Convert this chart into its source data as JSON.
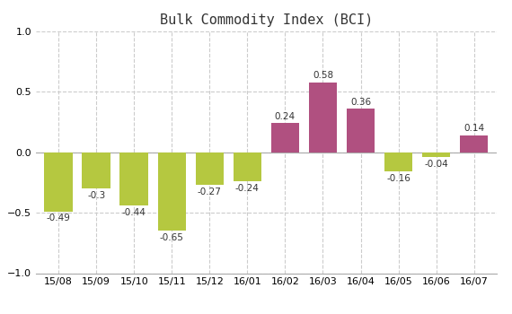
{
  "title": "Bulk Commodity Index (BCI)",
  "categories": [
    "15/08",
    "15/09",
    "15/10",
    "15/11",
    "15/12",
    "16/01",
    "16/02",
    "16/03",
    "16/04",
    "16/05",
    "16/06",
    "16/07"
  ],
  "values": [
    -0.49,
    -0.3,
    -0.44,
    -0.65,
    -0.27,
    -0.24,
    0.24,
    0.58,
    0.36,
    -0.16,
    -0.04,
    0.14
  ],
  "bar_color_negative": "#b5c840",
  "bar_color_positive": "#b05080",
  "ylim": [
    -1,
    1
  ],
  "yticks": [
    -1,
    -0.5,
    0,
    0.5,
    1
  ],
  "background_color": "#ffffff",
  "grid_color": "#cccccc",
  "label_fontsize": 7.5,
  "title_fontsize": 11,
  "bar_width": 0.75
}
